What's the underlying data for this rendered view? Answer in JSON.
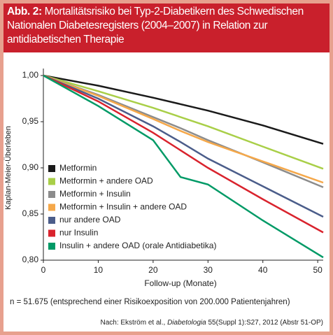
{
  "header": {
    "label": "Abb. 2:",
    "title": "Mortalitätsrisiko bei Typ-2-Diabetikern des Schwedischen Nationalen Diabetesregisters (2004–2007) in Relation zur antidiabetischen Therapie"
  },
  "chart_data": {
    "type": "line",
    "x_label": "Follow-up (Monate)",
    "y_label": "Kaplan-Meier-Überleben",
    "x": [
      0,
      10,
      20,
      25,
      30,
      40,
      51
    ],
    "xlim": [
      0,
      51
    ],
    "xticks": [
      0,
      10,
      20,
      30,
      40,
      50
    ],
    "ylim": [
      0.8,
      1.0
    ],
    "yticks": [
      {
        "value": 0.8,
        "label": "0,80"
      },
      {
        "value": 0.85,
        "label": "0,85"
      },
      {
        "value": 0.9,
        "label": "0,90"
      },
      {
        "value": 0.95,
        "label": "0,95"
      },
      {
        "value": 1.0,
        "label": "1,00"
      }
    ],
    "series": [
      {
        "name": "Metformin",
        "color": "#1a1a1a",
        "values": [
          1.0,
          0.989,
          0.976,
          0.969,
          0.962,
          0.946,
          0.926
        ]
      },
      {
        "name": "Metformin + andere OAD",
        "color": "#a9cf48",
        "values": [
          1.0,
          0.983,
          0.965,
          0.955,
          0.945,
          0.923,
          0.899
        ]
      },
      {
        "name": "Metformin + Insulin",
        "color": "#8c8c8c",
        "values": [
          1.0,
          0.979,
          0.955,
          0.943,
          0.93,
          0.906,
          0.879
        ]
      },
      {
        "name": "Metformin + Insulin + andere OAD",
        "color": "#f5a84a",
        "values": [
          1.0,
          0.978,
          0.953,
          0.94,
          0.928,
          0.907,
          0.884
        ]
      },
      {
        "name": "nur andere OAD",
        "color": "#4b5d8a",
        "values": [
          1.0,
          0.975,
          0.945,
          0.928,
          0.91,
          0.88,
          0.847
        ]
      },
      {
        "name": "nur Insulin",
        "color": "#d9232d",
        "values": [
          1.0,
          0.972,
          0.938,
          0.919,
          0.9,
          0.866,
          0.83
        ]
      },
      {
        "name": "Insulin + andere OAD (orale Antidiabetika)",
        "color": "#009a66",
        "values": [
          1.0,
          0.967,
          0.93,
          0.89,
          0.882,
          0.843,
          0.803
        ]
      }
    ]
  },
  "notes": {
    "n": "n = 51.675 (entsprechend einer Risikoexposition von 200.000 Patientenjahren)",
    "source_pre": "Nach: Ekström et al., ",
    "source_journal": "Diabetologia",
    "source_post": " 55(Suppl 1):S27, 2012 (Abstr 51-OP)"
  }
}
